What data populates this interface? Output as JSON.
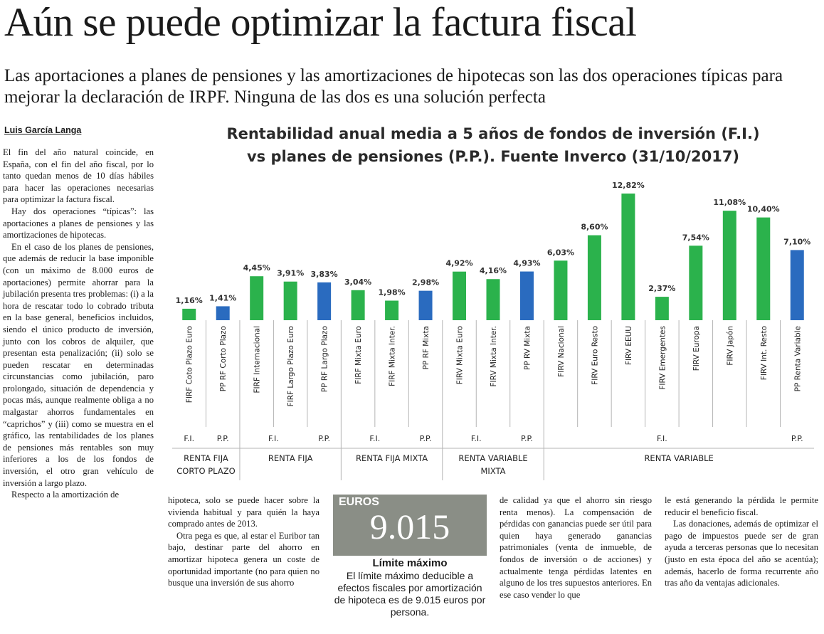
{
  "headline": "Aún se puede optimizar la factura fiscal",
  "deck": "Las aportaciones a planes de pensiones y las amortizaciones de hipotecas son las dos operaciones típicas para mejorar la declaración de IRPF. Ninguna de las dos es una solución perfecta",
  "byline": "Luis García Langa",
  "body": {
    "col1": [
      "El fin del año natural coincide, en España, con el fin del año fiscal, por lo tanto quedan menos de 10 días hábiles para hacer las operaciones necesarias para optimizar la factura fiscal.",
      "Hay dos operaciones “típicas”: las aportaciones a planes de pensiones y las amortizaciones de hipotecas.",
      "En el caso de los planes de pensiones, que además de reducir la base imponible (con un máximo de 8.000 euros de aportaciones) permite ahorrar para la jubilación presenta tres problemas: (i) a la hora de rescatar todo lo cobrado tributa en la base general, beneficios incluidos, siendo el único producto de inversión, junto con los cobros de alquiler, que presentan esta penalización; (ii) solo se pueden rescatar en determinadas circunstancias como jubilación, paro prolongado, situación de dependencia y pocas más, aunque realmente obliga a no malgastar ahorros fundamentales en “caprichos” y (iii) como se muestra en el gráfico, las rentabilidades de los planes de pensiones más rentables son muy inferiores a los de los fondos de inversión, el otro gran vehículo de inversión a largo plazo.",
      "Respecto a la amortización de"
    ],
    "col2": [
      "hipoteca, solo se puede hacer sobre la vivienda habitual y para quién la haya comprado antes de 2013.",
      "Otra pega es que, al estar el Euribor tan bajo, destinar parte del ahorro en amortizar hipoteca genera un coste de oportunidad importante (no para quien no busque una inversión de sus ahorro"
    ],
    "col3": [
      "de calidad ya que el ahorro sin riesgo renta menos). La compensación de pérdidas con ganancias puede ser útil para quien haya generado ganancias patrimoniales (venta de inmueble, de fondos de inversión o de acciones) y actualmente tenga pérdidas latentes en alguno de los tres supuestos anteriores. En ese caso vender lo que"
    ],
    "col4": [
      "le está generando la pérdida le permite reducir el beneficio fiscal.",
      "Las donaciones, además de optimizar el pago de impuestos puede ser de gran ayuda a terceras personas que lo necesitan (justo en esta época del año se acentúa); además, hacerlo de forma recurrente año tras año da ventajas adicionales."
    ]
  },
  "callout": {
    "unit": "EUROS",
    "value": "9.015",
    "label": "Límite máximo",
    "description": "El límite máximo deducible a efectos fiscales por amortización de hipoteca es de 9.015 euros por persona."
  },
  "chart_data": {
    "type": "bar",
    "title_line1": "Rentabilidad anual media a 5 años de fondos de inversión (F.I.)",
    "title_line2": "vs planes de pensiones (P.P.). Fuente Inverco (31/10/2017)",
    "categories": [
      "FIRF Coto Plazo Euro",
      "PP RF Corto Plazo",
      "FIRF Internacional",
      "FIRF Largo Plazo Euro",
      "PP RF Largo Plazo",
      "FIRF Mixta Euro",
      "FIRF Mixta Inter.",
      "PP RF Mixta",
      "FIRV Mixta Euro",
      "FIRV Mixta Inter.",
      "PP RV Mixta",
      "FIRV Nacional",
      "FIRV Euro Resto",
      "FIRV EEUU",
      "FIRV Emergentes",
      "FIRV Europa",
      "FIRV Japón",
      "FIRV Int. Resto",
      "PP Renta Variable"
    ],
    "values": [
      1.16,
      1.41,
      4.45,
      3.91,
      3.83,
      3.04,
      1.98,
      2.98,
      4.92,
      4.16,
      4.93,
      6.03,
      8.6,
      12.82,
      2.37,
      7.54,
      11.08,
      10.4,
      7.1
    ],
    "value_labels": [
      "1,16%",
      "1,41%",
      "4,45%",
      "3,91%",
      "3,83%",
      "3,04%",
      "1,98%",
      "2,98%",
      "4,92%",
      "4,16%",
      "4,93%",
      "6,03%",
      "8,60%",
      "12,82%",
      "2,37%",
      "7,54%",
      "11,08%",
      "10,40%",
      "7,10%"
    ],
    "kind": [
      "F.I.",
      "P.P.",
      "F.I.",
      "F.I.",
      "P.P.",
      "F.I.",
      "F.I.",
      "P.P.",
      "F.I.",
      "F.I.",
      "P.P.",
      "F.I.",
      "F.I.",
      "F.I.",
      "F.I.",
      "F.I.",
      "F.I.",
      "F.I.",
      "P.P."
    ],
    "group_labels": [
      {
        "text": "F.I.",
        "from": 0,
        "to": 0
      },
      {
        "text": "P.P.",
        "from": 1,
        "to": 1
      },
      {
        "text": "F.I.",
        "from": 2,
        "to": 3
      },
      {
        "text": "P.P.",
        "from": 4,
        "to": 4
      },
      {
        "text": "F.I.",
        "from": 5,
        "to": 6
      },
      {
        "text": "P.P.",
        "from": 7,
        "to": 7
      },
      {
        "text": "F.I.",
        "from": 8,
        "to": 9
      },
      {
        "text": "P.P.",
        "from": 10,
        "to": 10
      },
      {
        "text": "F.I.",
        "from": 11,
        "to": 17
      },
      {
        "text": "P.P.",
        "from": 18,
        "to": 18
      }
    ],
    "sections": [
      {
        "lines": [
          "RENTA FIJA",
          "CORTO PLAZO"
        ],
        "from": 0,
        "to": 1
      },
      {
        "lines": [
          "RENTA FIJA"
        ],
        "from": 2,
        "to": 4
      },
      {
        "lines": [
          "RENTA FIJA MIXTA"
        ],
        "from": 5,
        "to": 7
      },
      {
        "lines": [
          "RENTA VARIABLE",
          "MIXTA"
        ],
        "from": 8,
        "to": 10
      },
      {
        "lines": [
          "RENTA VARIABLE"
        ],
        "from": 11,
        "to": 18
      }
    ],
    "colors": {
      "F.I.": "#2bb24c",
      "P.P.": "#2a6bbf"
    },
    "ylim": [
      0,
      14
    ],
    "grid": false
  }
}
